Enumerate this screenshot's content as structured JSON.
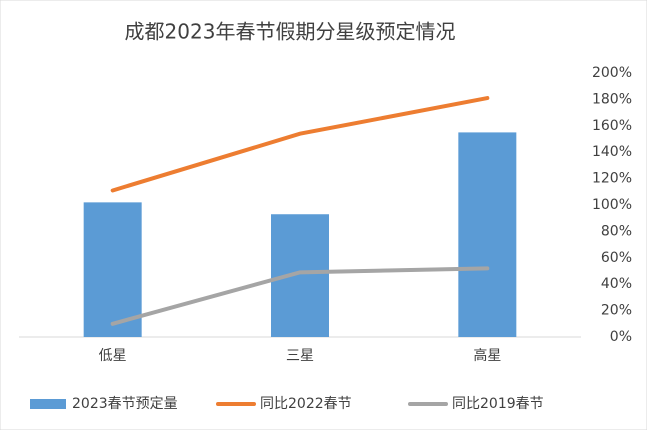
{
  "chart_data": {
    "type": "bar",
    "title": "成都2023年春节假期分星级预定情况",
    "categories": [
      "低星",
      "三星",
      "高星"
    ],
    "series": [
      {
        "name": "2023春节预定量",
        "type": "bar",
        "color": "#5b9bd5",
        "values": [
          102,
          93,
          155
        ]
      },
      {
        "name": "同比2022春节",
        "type": "line",
        "color": "#ed7d31",
        "values": [
          111,
          154,
          181
        ]
      },
      {
        "name": "同比2019春节",
        "type": "line",
        "color": "#a5a5a5",
        "values": [
          10,
          49,
          52
        ]
      }
    ],
    "ylim": [
      0,
      200
    ],
    "yticks": [
      {
        "value": 0,
        "label": "0%"
      },
      {
        "value": 20,
        "label": "20%"
      },
      {
        "value": 40,
        "label": "40%"
      },
      {
        "value": 60,
        "label": "60%"
      },
      {
        "value": 80,
        "label": "80%"
      },
      {
        "value": 100,
        "label": "100%"
      },
      {
        "value": 120,
        "label": "120%"
      },
      {
        "value": 140,
        "label": "140%"
      },
      {
        "value": 160,
        "label": "160%"
      },
      {
        "value": 180,
        "label": "180%"
      },
      {
        "value": 200,
        "label": "200%"
      }
    ],
    "axis_side": "right",
    "legend": "bottom"
  }
}
